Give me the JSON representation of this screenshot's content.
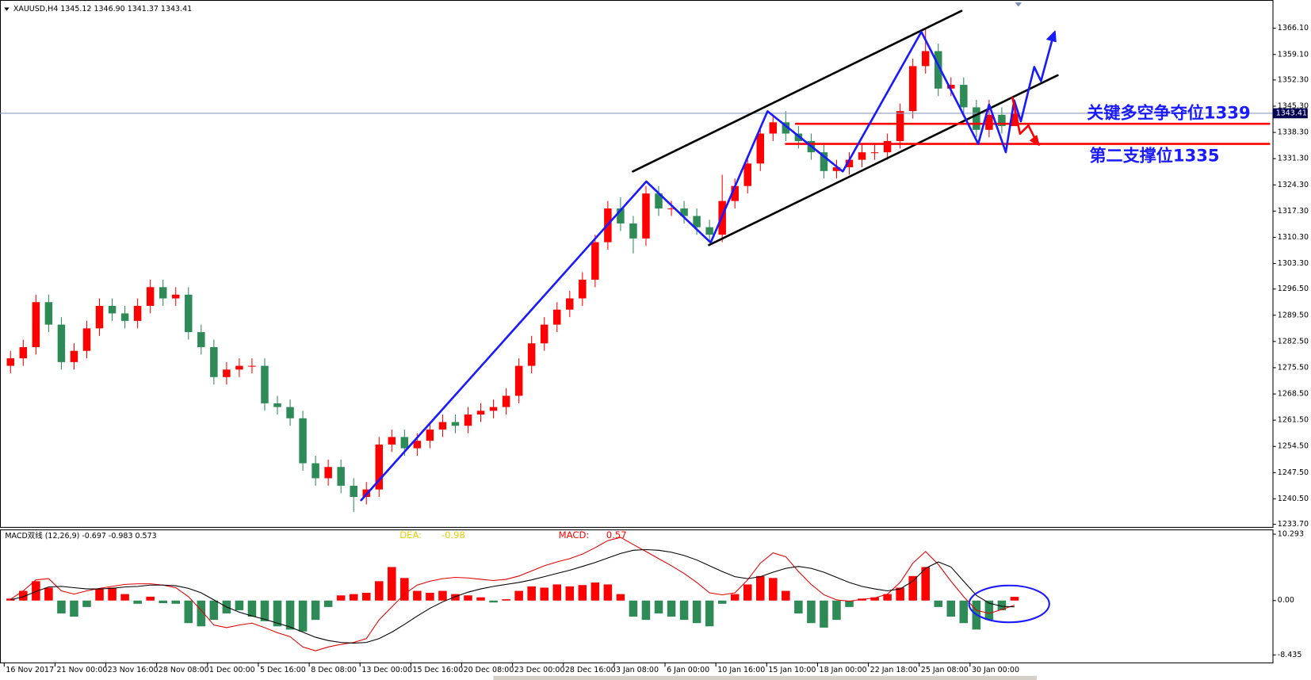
{
  "header": "XAUUSD,H4  1345.12 1346.90 1341.37 1343.41",
  "chart_data": [
    {
      "type": "candlestick",
      "categories": [
        "16 Nov 2017",
        null,
        null,
        null,
        "21 Nov 00:00",
        null,
        null,
        null,
        "23 Nov 16:00",
        null,
        null,
        null,
        "28 Nov 08:00",
        null,
        null,
        null,
        "1 Dec 00:00",
        null,
        null,
        null,
        "5 Dec 16:00",
        null,
        null,
        null,
        "8 Dec 08:00",
        null,
        null,
        null,
        "13 Dec 00:00",
        null,
        null,
        null,
        "15 Dec 16:00",
        null,
        null,
        null,
        "20 Dec 08:00",
        null,
        null,
        null,
        "23 Dec 00:00",
        null,
        null,
        null,
        "28 Dec 16:00",
        null,
        null,
        null,
        "3 Jan 08:00",
        null,
        null,
        null,
        "6 Jan 00:00",
        null,
        null,
        null,
        "10 Jan 16:00",
        null,
        null,
        null,
        "15 Jan 10:00",
        null,
        null,
        null,
        "18 Jan 00:00",
        null,
        null,
        null,
        "22 Jan 18:00",
        null,
        null,
        null,
        "25 Jan 08:00",
        null,
        null,
        null,
        "30 Jan 00:00",
        null,
        null,
        null
      ],
      "open": [
        1276,
        1278,
        1281,
        1293,
        1287,
        1277,
        1280,
        1286,
        1292,
        1290,
        1288,
        1292,
        1297,
        1294,
        1295,
        1285,
        1281,
        1273,
        1275,
        1276,
        1276,
        1266,
        1265,
        1262,
        1250,
        1246,
        1249,
        1244,
        1241,
        1243,
        1255,
        1257,
        1254,
        1256,
        1259,
        1261,
        1260,
        1263,
        1264,
        1265,
        1268,
        1276,
        1282,
        1287,
        1291,
        1294,
        1299,
        1309,
        1318,
        1314,
        1310,
        1322,
        1318,
        1318,
        1316,
        1313,
        1311,
        1320,
        1324,
        1330,
        1338,
        1341,
        1338,
        1336,
        1333,
        1328,
        1329,
        1331,
        1333,
        1333,
        1336,
        1344,
        1356,
        1360,
        1350,
        1351,
        1345,
        1339,
        1343,
        1340
      ],
      "high": [
        1280,
        1283,
        1295,
        1295,
        1289,
        1282,
        1288,
        1294,
        1294,
        1292,
        1294,
        1299,
        1299,
        1297,
        1297,
        1287,
        1283,
        1277,
        1278,
        1278,
        1278,
        1268,
        1267,
        1264,
        1252,
        1251,
        1251,
        1246,
        1245,
        1257,
        1259,
        1259,
        1258,
        1261,
        1263,
        1263,
        1265,
        1266,
        1267,
        1270,
        1278,
        1284,
        1289,
        1293,
        1296,
        1301,
        1311,
        1320,
        1321,
        1316,
        1324,
        1324,
        1320,
        1320,
        1318,
        1315,
        1327,
        1326,
        1332,
        1340,
        1343,
        1344,
        1340,
        1338,
        1335,
        1331,
        1333,
        1335,
        1335,
        1338,
        1346,
        1358,
        1366,
        1362,
        1353,
        1353,
        1347,
        1347,
        1345,
        1346.9
      ],
      "low": [
        1274,
        1276,
        1279,
        1285,
        1275,
        1275,
        1278,
        1284,
        1288,
        1286,
        1286,
        1290,
        1292,
        1292,
        1283,
        1279,
        1271,
        1271,
        1273,
        1274,
        1264,
        1263,
        1260,
        1248,
        1244,
        1244,
        1242,
        1237,
        1239,
        1241,
        1253,
        1252,
        1252,
        1254,
        1257,
        1258,
        1258,
        1261,
        1262,
        1263,
        1266,
        1274,
        1280,
        1285,
        1289,
        1292,
        1297,
        1307,
        1312,
        1306,
        1308,
        1316,
        1316,
        1314,
        1311,
        1309,
        1309,
        1318,
        1322,
        1328,
        1336,
        1336,
        1334,
        1331,
        1326,
        1326,
        1327,
        1329,
        1331,
        1331,
        1334,
        1342,
        1354,
        1348,
        1348,
        1343,
        1337,
        1337,
        1338,
        1341.37
      ],
      "close": [
        1278,
        1281,
        1293,
        1287,
        1277,
        1280,
        1286,
        1292,
        1290,
        1288,
        1292,
        1297,
        1294,
        1295,
        1285,
        1281,
        1273,
        1275,
        1276,
        1276,
        1266,
        1265,
        1262,
        1250,
        1246,
        1249,
        1244,
        1241,
        1243,
        1255,
        1257,
        1254,
        1256,
        1259,
        1261,
        1260,
        1263,
        1264,
        1265,
        1268,
        1276,
        1282,
        1287,
        1291,
        1294,
        1299,
        1309,
        1318,
        1314,
        1310,
        1322,
        1318,
        1318,
        1316,
        1313,
        1311,
        1320,
        1324,
        1330,
        1338,
        1341,
        1338,
        1336,
        1333,
        1328,
        1329,
        1331,
        1333,
        1333,
        1336,
        1344,
        1356,
        1360,
        1350,
        1351,
        1345,
        1339,
        1343,
        1340,
        1343.41
      ],
      "up_color": "#ff0000",
      "down_color": "#2e8b57",
      "ylim": [
        1233.0,
        1373.2
      ],
      "yticks": [
        {
          "value": 1366.1,
          "label": "1366.10"
        },
        {
          "value": 1359.1,
          "label": "1359.10"
        },
        {
          "value": 1352.3,
          "label": "1352.30"
        },
        {
          "value": 1345.3,
          "label": "1345.30"
        },
        {
          "value": 1338.3,
          "label": "1338.30"
        },
        {
          "value": 1331.3,
          "label": "1331.30"
        },
        {
          "value": 1324.3,
          "label": "1324.30"
        },
        {
          "value": 1317.3,
          "label": "1317.30"
        },
        {
          "value": 1310.3,
          "label": "1310.30"
        },
        {
          "value": 1303.3,
          "label": "1303.30"
        },
        {
          "value": 1296.5,
          "label": "1296.50"
        },
        {
          "value": 1289.5,
          "label": "1289.50"
        },
        {
          "value": 1282.5,
          "label": "1282.50"
        },
        {
          "value": 1275.5,
          "label": "1275.50"
        },
        {
          "value": 1268.5,
          "label": "1268.50"
        },
        {
          "value": 1261.5,
          "label": "1261.50"
        },
        {
          "value": 1254.5,
          "label": "1254.50"
        },
        {
          "value": 1247.5,
          "label": "1247.50"
        },
        {
          "value": 1240.5,
          "label": "1240.50"
        },
        {
          "value": 1233.7,
          "label": "1233.70"
        }
      ],
      "last_price": {
        "value": 1343.41,
        "label": "1343.41"
      },
      "annotations": [
        "关键多空争夺位1339",
        "第二支撑位1335"
      ]
    },
    {
      "type": "macd",
      "title": "MACD双线 (12,26,9) -0.697 -0.983 0.573",
      "legend_texts": [
        "DEA:",
        "-0.98",
        "MACD:",
        "0.57"
      ],
      "series": [
        {
          "kind": "histogram",
          "up_color": "#ff0000",
          "down_color": "#2e8b57",
          "values": [
            0.3,
            1.5,
            3.0,
            2.0,
            -2.0,
            -2.5,
            -1.0,
            1.8,
            2.0,
            1.0,
            -0.5,
            0.6,
            -0.4,
            -0.5,
            -3.5,
            -4.0,
            -3.0,
            -2.0,
            -1.5,
            -2.5,
            -3.2,
            -4.0,
            -4.5,
            -4.8,
            -3.0,
            -1.0,
            0.8,
            1.0,
            1.2,
            3.0,
            5.2,
            3.5,
            1.5,
            1.2,
            1.5,
            1.0,
            0.8,
            0.5,
            -0.3,
            0.2,
            1.5,
            2.2,
            2.0,
            2.5,
            2.2,
            2.4,
            2.8,
            2.5,
            1.0,
            -2.5,
            -3.0,
            -2.0,
            -2.5,
            -3.0,
            -3.5,
            -4.0,
            -0.5,
            1.0,
            2.5,
            3.8,
            3.5,
            1.5,
            -2.0,
            -3.5,
            -4.2,
            -3.0,
            -1.0,
            0.3,
            0.5,
            1.0,
            2.0,
            3.8,
            5.2,
            -1.0,
            -2.5,
            -3.5,
            -4.5,
            -3.0,
            -1.5,
            0.573
          ]
        },
        {
          "kind": "line",
          "color": "#e00000",
          "values": [
            0.2,
            1.5,
            3.2,
            3.4,
            1.5,
            1.0,
            1.5,
            1.9,
            2.2,
            2.5,
            2.6,
            2.6,
            2.4,
            2.0,
            0.6,
            -1.5,
            -3.8,
            -4.2,
            -3.8,
            -3.5,
            -4.2,
            -5.0,
            -5.6,
            -7.2,
            -7.8,
            -7.2,
            -6.8,
            -6.5,
            -5.9,
            -3.0,
            -1.0,
            1.0,
            2.4,
            3.0,
            3.4,
            3.6,
            3.5,
            3.3,
            3.1,
            3.3,
            3.8,
            4.6,
            5.4,
            6.0,
            6.5,
            7.2,
            8.2,
            9.3,
            9.8,
            8.7,
            7.6,
            6.5,
            5.4,
            4.2,
            2.8,
            1.2,
            0.9,
            1.2,
            3.2,
            5.8,
            7.4,
            6.8,
            4.5,
            2.5,
            0.9,
            0.1,
            -0.1,
            0.2,
            0.4,
            1.0,
            2.8,
            5.8,
            7.6,
            5.6,
            3.0,
            0.6,
            -1.5,
            -2.0,
            -1.4,
            -0.697
          ]
        },
        {
          "kind": "line",
          "color": "#000000",
          "values": [
            0.1,
            0.6,
            1.4,
            2.1,
            2.2,
            2.0,
            1.8,
            1.8,
            1.9,
            2.1,
            2.2,
            2.4,
            2.4,
            2.3,
            1.9,
            1.2,
            0.1,
            -1.0,
            -1.8,
            -2.4,
            -2.9,
            -3.5,
            -4.1,
            -4.9,
            -5.7,
            -6.2,
            -6.5,
            -6.6,
            -6.5,
            -5.9,
            -4.9,
            -3.7,
            -2.4,
            -1.2,
            -0.2,
            0.6,
            1.3,
            1.8,
            2.2,
            2.5,
            2.8,
            3.2,
            3.7,
            4.2,
            4.7,
            5.3,
            5.9,
            6.6,
            7.3,
            7.8,
            7.9,
            7.8,
            7.5,
            7.0,
            6.3,
            5.4,
            4.5,
            3.7,
            3.4,
            3.7,
            4.4,
            5.0,
            5.3,
            5.0,
            4.4,
            3.6,
            2.8,
            2.2,
            1.8,
            1.5,
            1.8,
            3.0,
            5.0,
            6.0,
            5.2,
            3.0,
            0.8,
            -0.4,
            -0.9,
            -0.983
          ]
        }
      ],
      "ylim": [
        -9.6,
        10.9
      ],
      "yticks": [
        10.293,
        {
          "value": 0,
          "label": "0.00"
        },
        -8.435
      ]
    }
  ]
}
